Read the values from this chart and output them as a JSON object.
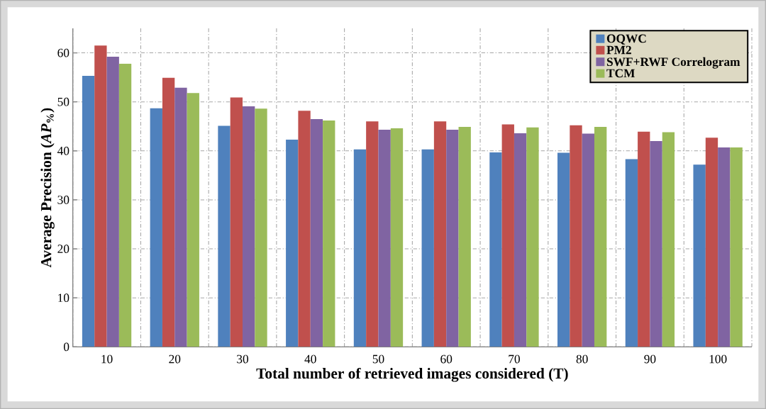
{
  "chart_data": {
    "type": "bar",
    "xlabel": "Total number of retrieved images considered (T)",
    "ylabel": "Average  Precision (*AP*$_{%}$)",
    "categories": [
      "10",
      "20",
      "30",
      "40",
      "50",
      "60",
      "70",
      "80",
      "90",
      "100"
    ],
    "series": [
      {
        "name": "OQWC",
        "color": "#4f81bd",
        "values": [
          55.3,
          48.7,
          45.1,
          42.3,
          40.3,
          40.3,
          39.7,
          39.6,
          38.3,
          37.2
        ]
      },
      {
        "name": "PM2",
        "color": "#c0504d",
        "values": [
          61.5,
          54.9,
          50.9,
          48.2,
          46.0,
          46.0,
          45.4,
          45.2,
          43.9,
          42.7
        ]
      },
      {
        "name": "SWF+RWF Correlogram",
        "color": "#8064a2",
        "values": [
          59.2,
          52.9,
          49.1,
          46.5,
          44.3,
          44.3,
          43.6,
          43.5,
          42.0,
          40.7
        ]
      },
      {
        "name": "TCM",
        "color": "#9bbb59",
        "values": [
          57.8,
          51.8,
          48.6,
          46.2,
          44.6,
          44.9,
          44.8,
          44.9,
          43.8,
          40.7
        ]
      }
    ],
    "ylim": [
      0,
      65
    ],
    "yticks": [
      0,
      10,
      20,
      30,
      40,
      50,
      60
    ],
    "grid": true,
    "legend": "top right"
  }
}
